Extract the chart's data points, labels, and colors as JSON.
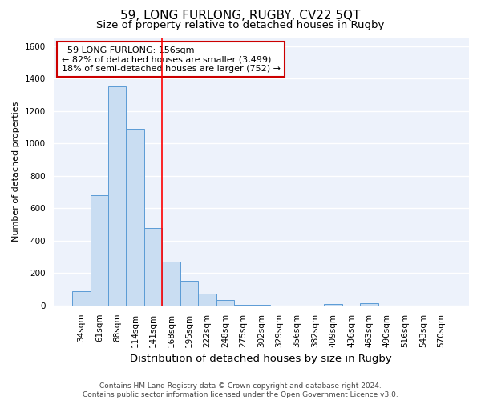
{
  "title": "59, LONG FURLONG, RUGBY, CV22 5QT",
  "subtitle": "Size of property relative to detached houses in Rugby",
  "xlabel": "Distribution of detached houses by size in Rugby",
  "ylabel": "Number of detached properties",
  "categories": [
    "34sqm",
    "61sqm",
    "88sqm",
    "114sqm",
    "141sqm",
    "168sqm",
    "195sqm",
    "222sqm",
    "248sqm",
    "275sqm",
    "302sqm",
    "329sqm",
    "356sqm",
    "382sqm",
    "409sqm",
    "436sqm",
    "463sqm",
    "490sqm",
    "516sqm",
    "543sqm",
    "570sqm"
  ],
  "values": [
    90,
    680,
    1350,
    1090,
    480,
    270,
    150,
    75,
    35,
    5,
    2,
    1,
    1,
    1,
    8,
    1,
    15,
    0,
    0,
    0,
    0
  ],
  "bar_color": "#c9ddf2",
  "bar_edge_color": "#5b9bd5",
  "background_color": "#edf2fb",
  "grid_color": "#ffffff",
  "red_line_x": 4.5,
  "annotation_text": "  59 LONG FURLONG: 156sqm\n← 82% of detached houses are smaller (3,499)\n18% of semi-detached houses are larger (752) →",
  "annotation_box_color": "#ffffff",
  "annotation_box_edge": "#cc0000",
  "ylim": [
    0,
    1650
  ],
  "yticks": [
    0,
    200,
    400,
    600,
    800,
    1000,
    1200,
    1400,
    1600
  ],
  "footer": "Contains HM Land Registry data © Crown copyright and database right 2024.\nContains public sector information licensed under the Open Government Licence v3.0.",
  "title_fontsize": 11,
  "subtitle_fontsize": 9.5,
  "xlabel_fontsize": 9.5,
  "ylabel_fontsize": 8,
  "tick_fontsize": 7.5,
  "annotation_fontsize": 8,
  "footer_fontsize": 6.5
}
